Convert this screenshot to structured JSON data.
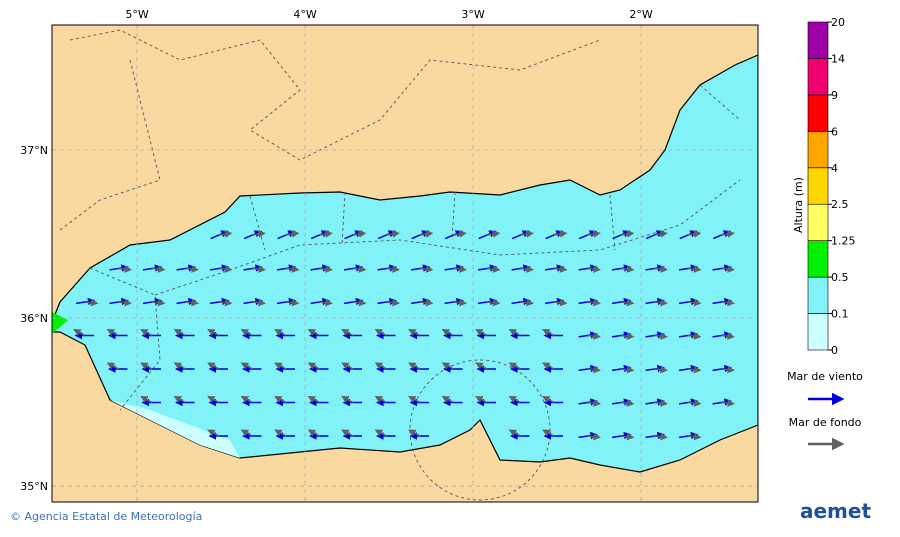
{
  "map": {
    "lon_lim": [
      -5.506,
      -1.304
    ],
    "lat_lim": [
      34.905,
      37.744
    ],
    "lon_ticks": [
      {
        "value": -5,
        "label": "5°W"
      },
      {
        "value": -4,
        "label": "4°W"
      },
      {
        "value": -3,
        "label": "3°W"
      },
      {
        "value": -2,
        "label": "2°W"
      }
    ],
    "lat_ticks": [
      {
        "value": 37,
        "label": "37°N"
      },
      {
        "value": 36,
        "label": "36°N"
      },
      {
        "value": 35,
        "label": "35°N"
      }
    ],
    "colorbar": {
      "label": "Altura (m)",
      "ticks": [
        0,
        0.1,
        0.5,
        1.25,
        2.5,
        4,
        6,
        9,
        14,
        20
      ],
      "colors": [
        "#ccffff",
        "#80f2f8",
        "#00f000",
        "#ffff60",
        "#ffd700",
        "#ffa500",
        "#ff0000",
        "#f00070",
        "#a000a8"
      ]
    },
    "legend": [
      {
        "name": "Mar de viento",
        "color": "#0000e0"
      },
      {
        "name": "Mar de fondo",
        "color": "#606060"
      }
    ],
    "footer": "© Agencia Estatal de Meteorología",
    "logo": "aemet"
  }
}
